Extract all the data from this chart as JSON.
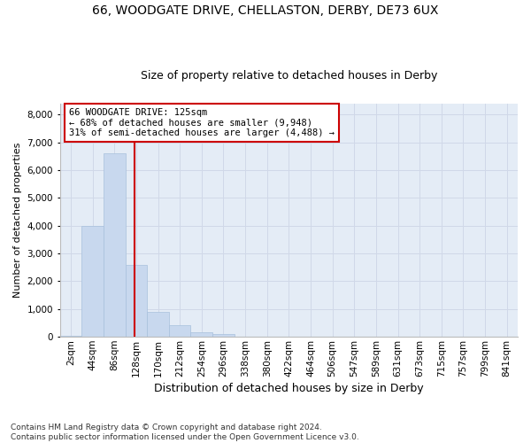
{
  "title1": "66, WOODGATE DRIVE, CHELLASTON, DERBY, DE73 6UX",
  "title2": "Size of property relative to detached houses in Derby",
  "xlabel": "Distribution of detached houses by size in Derby",
  "ylabel": "Number of detached properties",
  "bar_labels": [
    "2sqm",
    "44sqm",
    "86sqm",
    "128sqm",
    "170sqm",
    "212sqm",
    "254sqm",
    "296sqm",
    "338sqm",
    "380sqm",
    "422sqm",
    "464sqm",
    "506sqm",
    "547sqm",
    "589sqm",
    "631sqm",
    "673sqm",
    "715sqm",
    "757sqm",
    "799sqm",
    "841sqm"
  ],
  "bar_values": [
    30,
    3980,
    6620,
    2580,
    890,
    410,
    155,
    110,
    10,
    0,
    0,
    0,
    0,
    0,
    0,
    0,
    0,
    0,
    0,
    0,
    0
  ],
  "bar_color": "#c8d8ee",
  "bar_edge_color": "#a8c0dc",
  "grid_color": "#d0d8e8",
  "background_color": "#e4ecf6",
  "vline_x": 2.93,
  "vline_color": "#cc0000",
  "annotation_text": "66 WOODGATE DRIVE: 125sqm\n← 68% of detached houses are smaller (9,948)\n31% of semi-detached houses are larger (4,488) →",
  "annotation_box_color": "#ffffff",
  "annotation_box_edge": "#cc0000",
  "ylim": [
    0,
    8400
  ],
  "yticks": [
    0,
    1000,
    2000,
    3000,
    4000,
    5000,
    6000,
    7000,
    8000
  ],
  "footnote": "Contains HM Land Registry data © Crown copyright and database right 2024.\nContains public sector information licensed under the Open Government Licence v3.0.",
  "title1_fontsize": 10,
  "title2_fontsize": 9,
  "xlabel_fontsize": 9,
  "ylabel_fontsize": 8,
  "tick_fontsize": 7.5,
  "annotation_fontsize": 7.5,
  "footnote_fontsize": 6.5
}
